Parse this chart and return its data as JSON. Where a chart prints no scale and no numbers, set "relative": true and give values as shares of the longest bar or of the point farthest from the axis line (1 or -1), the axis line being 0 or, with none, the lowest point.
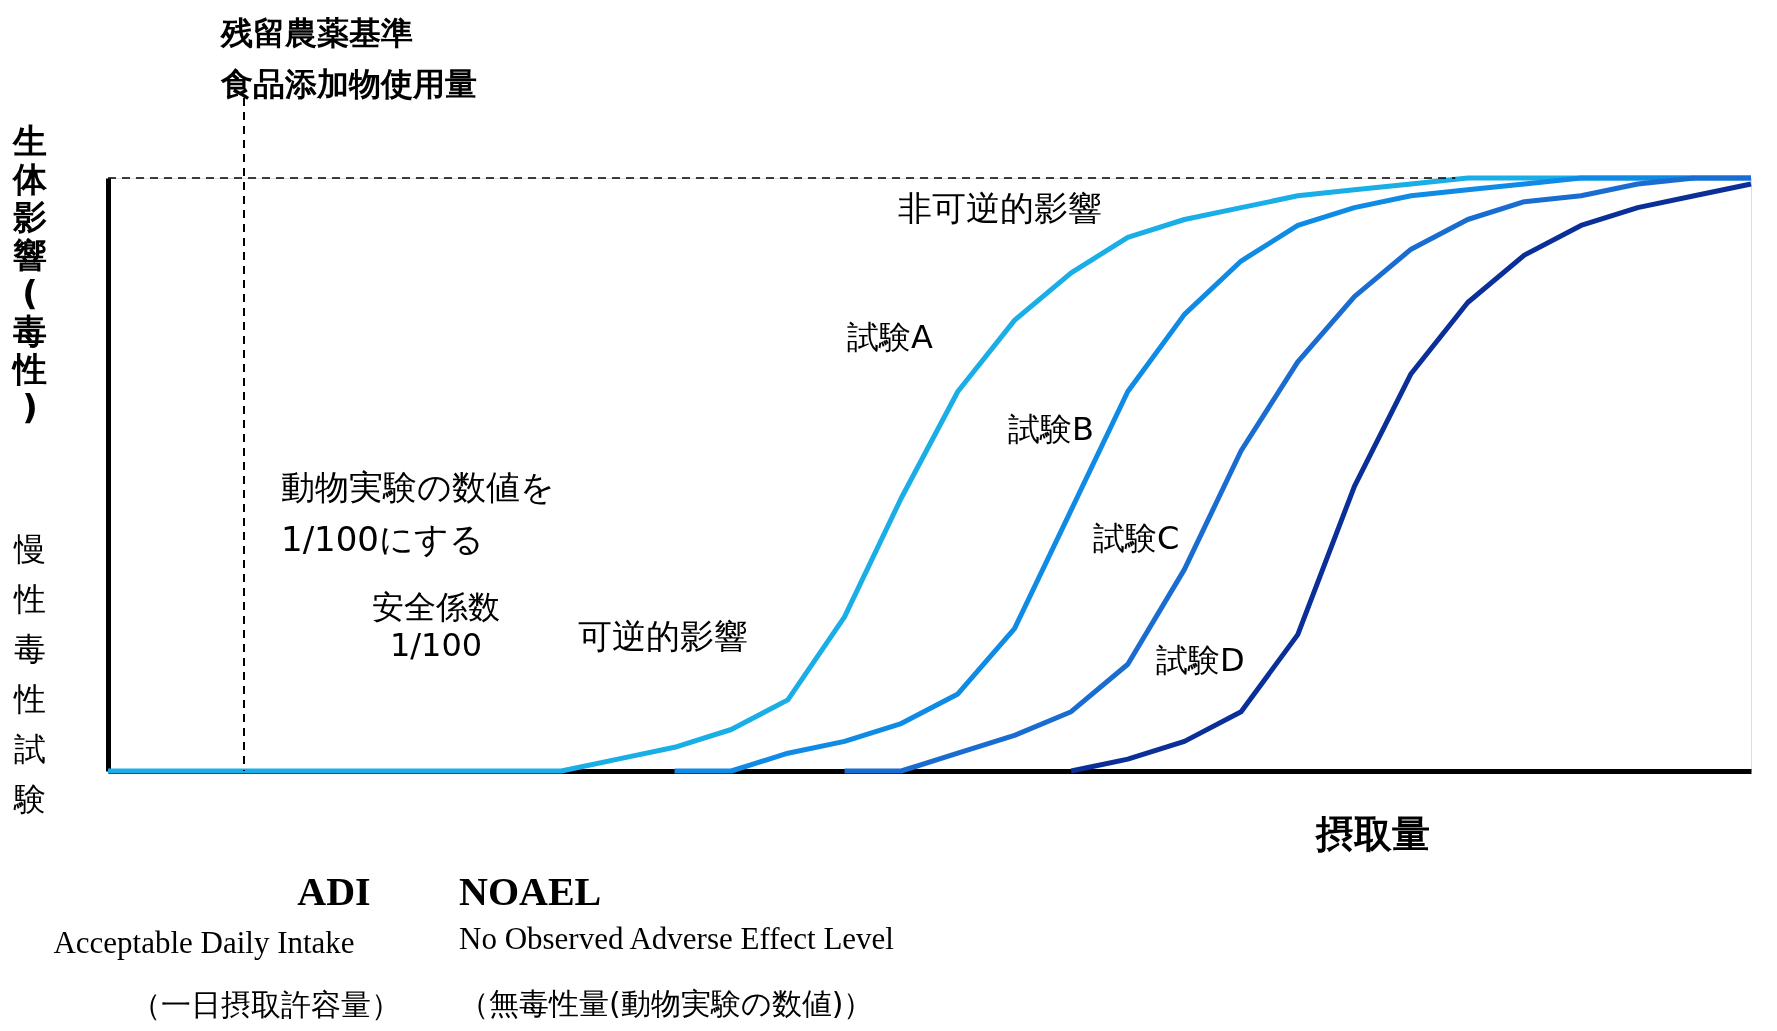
{
  "chart_data": {
    "type": "line",
    "relative": true,
    "tick_labels": false,
    "grid": false,
    "legend": false,
    "line_style": "solid",
    "marker": "none",
    "xlabel": "摂取量",
    "ylabel": "生体影響(毒性)",
    "categories": [
      null,
      null,
      null,
      null,
      null,
      null,
      null,
      null,
      null,
      null,
      null,
      null,
      null,
      null,
      null,
      null,
      null,
      null,
      null,
      null,
      null,
      null,
      null,
      null,
      null,
      null,
      null,
      null,
      null,
      null
    ],
    "series": [
      {
        "name": "試験A",
        "color": "#19aee6",
        "values": [
          0,
          0,
          0,
          0,
          0,
          0,
          0,
          0,
          0,
          0.02,
          0.04,
          0.07,
          0.12,
          0.26,
          0.46,
          0.64,
          0.76,
          0.84,
          0.9,
          0.93,
          0.95,
          0.97,
          0.98,
          0.99,
          1,
          1,
          1,
          1,
          1,
          null
        ]
      },
      {
        "name": "試験B",
        "color": "#0f8be6",
        "values": [
          null,
          null,
          null,
          null,
          null,
          null,
          null,
          null,
          null,
          null,
          0,
          0,
          0.03,
          0.05,
          0.08,
          0.13,
          0.24,
          0.44,
          0.64,
          0.77,
          0.86,
          0.92,
          0.95,
          0.97,
          0.98,
          0.99,
          1,
          1,
          1,
          1
        ]
      },
      {
        "name": "試験C",
        "color": "#1a6dd0",
        "values": [
          null,
          null,
          null,
          null,
          null,
          null,
          null,
          null,
          null,
          null,
          null,
          null,
          null,
          0,
          0,
          0.03,
          0.06,
          0.1,
          0.18,
          0.34,
          0.54,
          0.69,
          0.8,
          0.88,
          0.93,
          0.96,
          0.97,
          0.99,
          1,
          1
        ]
      },
      {
        "name": "試験D",
        "color": "#0b2f99",
        "values": [
          null,
          null,
          null,
          null,
          null,
          null,
          null,
          null,
          null,
          null,
          null,
          null,
          null,
          null,
          null,
          null,
          null,
          0,
          0.02,
          0.05,
          0.1,
          0.23,
          0.48,
          0.67,
          0.79,
          0.87,
          0.92,
          0.95,
          0.97,
          0.99
        ]
      }
    ],
    "ref_lines": [
      {
        "axis": "y",
        "value": 1,
        "line_style": "dashed",
        "color": "#000000"
      }
    ],
    "annotations": [
      "残留農薬基準",
      "食品添加物使用量",
      "慢性毒性試験",
      "動物実験の数値を\n1/100にする",
      "安全係数\n1/100",
      "可逆的影響",
      "非可逆的影響",
      "ADI",
      "Acceptable Daily Intake",
      "（一日摂取許容量）",
      "NOAEL",
      "No Observed Adverse Effect Level",
      "（無毒性量(動物実験の数値)）"
    ]
  }
}
